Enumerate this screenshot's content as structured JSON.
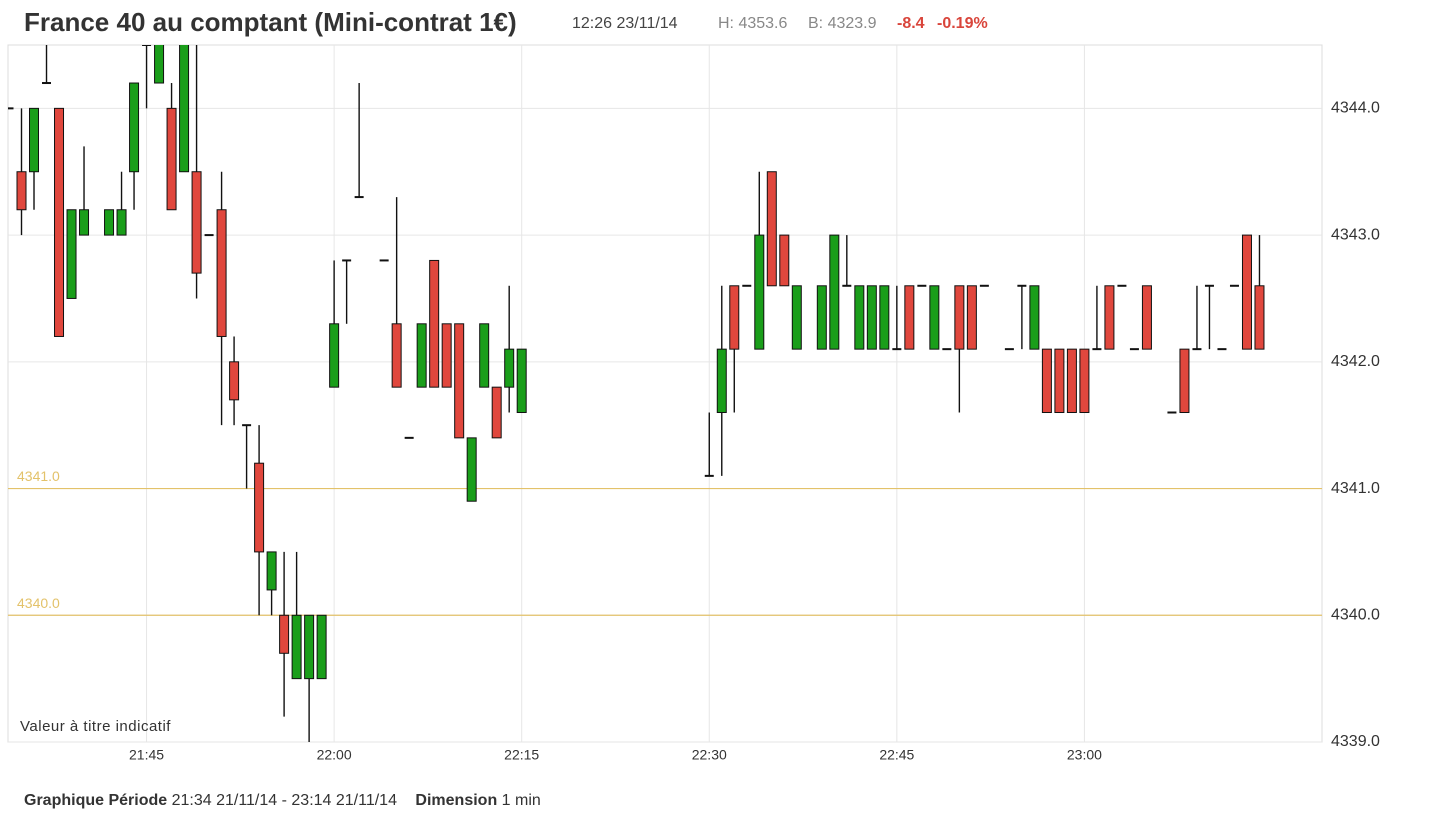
{
  "chart_data": {
    "type": "candlestick",
    "title": "France 40 au comptant (Mini-contrat 1€)",
    "quote_time": "12:26 23/11/14",
    "high_label": "H: 4353.6",
    "low_label": "B: 4323.9",
    "change": "-8.4",
    "change_pct": "-0.19%",
    "watermark": "Valeur à titre indicatif",
    "footer": {
      "period_label": "Graphique Période",
      "period": "21:34 21/11/14 - 23:14 21/11/14",
      "dimension_label": "Dimension",
      "dimension": "1 min"
    },
    "up_color": "#1a9e1a",
    "down_color": "#e0473d",
    "grid": true,
    "xlim": [
      "21:34",
      "23:19"
    ],
    "xticks": [
      "21:45",
      "22:00",
      "22:15",
      "22:30",
      "22:45",
      "23:00"
    ],
    "ylim": [
      4339,
      4344.5
    ],
    "yticks": [
      {
        "value": 4339,
        "label": "4339.0"
      },
      {
        "value": 4340,
        "label": "4340.0"
      },
      {
        "value": 4341,
        "label": "4341.0"
      },
      {
        "value": 4342,
        "label": "4342.0"
      },
      {
        "value": 4343,
        "label": "4343.0"
      },
      {
        "value": 4344,
        "label": "4344.0"
      }
    ],
    "ref_lines": [
      {
        "value": 4341,
        "label": "4341.0"
      },
      {
        "value": 4340,
        "label": "4340.0"
      }
    ],
    "ref_color": "#e3c26a",
    "x": [
      "21:34",
      "21:35",
      "21:36",
      "21:37",
      "21:38",
      "21:39",
      "21:40",
      "21:42",
      "21:43",
      "21:44",
      "21:45",
      "21:46",
      "21:47",
      "21:48",
      "21:49",
      "21:50",
      "21:51",
      "21:52",
      "21:53",
      "21:54",
      "21:55",
      "21:56",
      "21:57",
      "21:58",
      "21:59",
      "22:00",
      "22:01",
      "22:02",
      "22:04",
      "22:05",
      "22:06",
      "22:07",
      "22:08",
      "22:09",
      "22:10",
      "22:11",
      "22:12",
      "22:13",
      "22:14",
      "22:15",
      "22:30",
      "22:31",
      "22:32",
      "22:33",
      "22:34",
      "22:35",
      "22:36",
      "22:37",
      "22:39",
      "22:40",
      "22:41",
      "22:42",
      "22:43",
      "22:44",
      "22:45",
      "22:46",
      "22:47",
      "22:48",
      "22:49",
      "22:50",
      "22:51",
      "22:52",
      "22:54",
      "22:55",
      "22:56",
      "22:57",
      "22:58",
      "22:59",
      "23:00",
      "23:01",
      "23:02",
      "23:03",
      "23:04",
      "23:05",
      "23:07",
      "23:08",
      "23:09",
      "23:10",
      "23:11",
      "23:12",
      "23:13",
      "23:14"
    ],
    "open": [
      4344.0,
      4343.5,
      4343.5,
      4344.2,
      4344.0,
      4342.5,
      4343.0,
      4343.0,
      4343.0,
      4343.5,
      4344.5,
      4344.2,
      4344.0,
      4343.5,
      4343.5,
      4343.0,
      4343.2,
      4342.0,
      4341.5,
      4341.2,
      4340.2,
      4340.0,
      4339.5,
      4339.5,
      4339.5,
      4341.8,
      4342.8,
      4343.3,
      4342.8,
      4342.3,
      4341.4,
      4341.8,
      4342.8,
      4342.3,
      4342.3,
      4340.9,
      4341.8,
      4341.8,
      4341.8,
      4341.6,
      4341.1,
      4341.6,
      4342.6,
      4342.6,
      4342.1,
      4343.5,
      4343.0,
      4342.1,
      4342.1,
      4342.1,
      4342.6,
      4342.1,
      4342.1,
      4342.1,
      4342.1,
      4342.6,
      4342.6,
      4342.1,
      4342.1,
      4342.6,
      4342.6,
      4342.6,
      4342.1,
      4342.6,
      4342.1,
      4342.1,
      4342.1,
      4342.1,
      4342.1,
      4342.1,
      4342.6,
      4342.6,
      4342.1,
      4342.6,
      4341.6,
      4342.1,
      4342.1,
      4342.6,
      4342.1,
      4342.6,
      4343.0,
      4342.6
    ],
    "high": [
      4344.0,
      4344.0,
      4344.0,
      4344.6,
      4344.0,
      4343.2,
      4343.7,
      4343.2,
      4343.5,
      4344.2,
      4344.6,
      4344.6,
      4344.2,
      4344.6,
      4344.6,
      4343.0,
      4343.5,
      4342.2,
      4341.5,
      4341.5,
      4340.5,
      4340.5,
      4340.5,
      4340.0,
      4340.0,
      4342.8,
      4342.8,
      4344.2,
      4342.8,
      4343.3,
      4341.4,
      4342.3,
      4342.8,
      4342.3,
      4342.3,
      4341.4,
      4342.3,
      4341.8,
      4342.6,
      4342.1,
      4341.6,
      4342.6,
      4342.6,
      4342.6,
      4343.5,
      4343.5,
      4343.0,
      4342.6,
      4342.6,
      4343.0,
      4343.0,
      4342.6,
      4342.6,
      4342.6,
      4342.6,
      4342.6,
      4342.6,
      4342.6,
      4342.1,
      4342.6,
      4342.6,
      4342.6,
      4342.1,
      4342.6,
      4342.6,
      4342.1,
      4342.1,
      4342.1,
      4342.1,
      4342.6,
      4342.6,
      4342.6,
      4342.1,
      4342.6,
      4341.6,
      4342.1,
      4342.6,
      4342.6,
      4342.1,
      4342.6,
      4343.0,
      4343.0
    ],
    "low": [
      4344.0,
      4343.0,
      4343.2,
      4344.2,
      4342.2,
      4342.5,
      4343.0,
      4343.0,
      4343.0,
      4343.2,
      4344.0,
      4344.2,
      4343.2,
      4343.5,
      4342.5,
      4343.0,
      4341.5,
      4341.5,
      4341.0,
      4340.0,
      4340.0,
      4339.2,
      4339.5,
      4339.0,
      4339.5,
      4341.8,
      4342.3,
      4343.3,
      4342.8,
      4341.8,
      4341.4,
      4341.8,
      4341.8,
      4341.8,
      4341.4,
      4340.9,
      4341.8,
      4341.4,
      4341.6,
      4341.6,
      4341.1,
      4341.1,
      4341.6,
      4342.6,
      4342.1,
      4342.6,
      4342.6,
      4342.1,
      4342.1,
      4342.1,
      4342.6,
      4342.1,
      4342.1,
      4342.1,
      4342.1,
      4342.1,
      4342.6,
      4342.1,
      4342.1,
      4341.6,
      4342.1,
      4342.6,
      4342.1,
      4342.1,
      4342.1,
      4341.6,
      4341.6,
      4341.6,
      4341.6,
      4342.1,
      4342.1,
      4342.6,
      4342.1,
      4342.1,
      4341.6,
      4341.6,
      4342.1,
      4342.1,
      4342.1,
      4342.6,
      4342.1,
      4342.1
    ],
    "close": [
      4344.0,
      4343.2,
      4344.0,
      4344.2,
      4342.2,
      4343.2,
      4343.2,
      4343.2,
      4343.2,
      4344.2,
      4344.5,
      4344.6,
      4343.2,
      4344.6,
      4342.7,
      4343.0,
      4342.2,
      4341.7,
      4341.5,
      4340.5,
      4340.5,
      4339.7,
      4340.0,
      4340.0,
      4340.0,
      4342.3,
      4342.8,
      4343.3,
      4342.8,
      4341.8,
      4341.4,
      4342.3,
      4341.8,
      4341.8,
      4341.4,
      4341.4,
      4342.3,
      4341.4,
      4342.1,
      4342.1,
      4341.1,
      4342.1,
      4342.1,
      4342.6,
      4343.0,
      4342.6,
      4342.6,
      4342.6,
      4342.6,
      4343.0,
      4342.6,
      4342.6,
      4342.6,
      4342.6,
      4342.1,
      4342.1,
      4342.6,
      4342.6,
      4342.1,
      4342.1,
      4342.1,
      4342.6,
      4342.1,
      4342.6,
      4342.6,
      4341.6,
      4341.6,
      4341.6,
      4341.6,
      4342.1,
      4342.1,
      4342.6,
      4342.1,
      4342.1,
      4341.6,
      4341.6,
      4342.1,
      4342.6,
      4342.1,
      4342.6,
      4342.1,
      4342.1
    ]
  }
}
